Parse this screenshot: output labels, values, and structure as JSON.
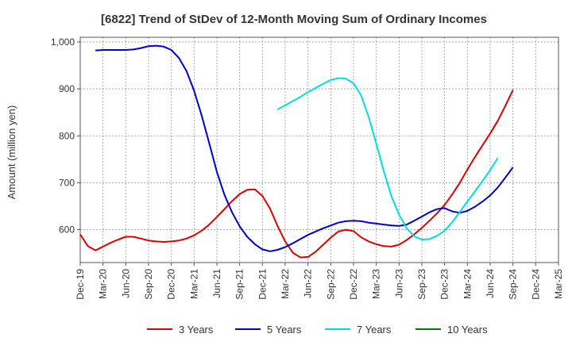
{
  "chart_data": {
    "type": "line",
    "title": "[6822]  Trend of StDev of 12-Month Moving Sum of Ordinary Incomes",
    "xlabel": "",
    "ylabel": "Amount (million yen)",
    "x_tick_labels": [
      "Dec-19",
      "Mar-20",
      "Jun-20",
      "Sep-20",
      "Dec-20",
      "Mar-21",
      "Jun-21",
      "Sep-21",
      "Dec-21",
      "Mar-22",
      "Jun-22",
      "Sep-22",
      "Dec-22",
      "Mar-23",
      "Jun-23",
      "Sep-23",
      "Dec-23",
      "Mar-24",
      "Jun-24",
      "Sep-24",
      "Dec-24",
      "Mar-25"
    ],
    "y_ticks": [
      600,
      700,
      800,
      900,
      1000
    ],
    "y_tick_labels": [
      "600",
      "700",
      "800",
      "900",
      "1,000"
    ],
    "ylim": [
      530,
      1010
    ],
    "grid": true,
    "legend_position": "bottom",
    "series": [
      {
        "name": "3 Years",
        "color": "#dd0000",
        "start_index": 0,
        "values": [
          590,
          565,
          556,
          564,
          572,
          579,
          585,
          585,
          581,
          577,
          575,
          574,
          575,
          577,
          581,
          588,
          598,
          611,
          627,
          644,
          661,
          676,
          685,
          686,
          672,
          645,
          608,
          575,
          551,
          541,
          542,
          553,
          568,
          583,
          596,
          600,
          597,
          584,
          575,
          569,
          565,
          564,
          568,
          578,
          590,
          604,
          619,
          635,
          653,
          675,
          700,
          728,
          755,
          780,
          805,
          832,
          864,
          898
        ]
      },
      {
        "name": "5 Years",
        "color": "#0000cc",
        "start_index": 2,
        "values": [
          982,
          983,
          983,
          983,
          983,
          984,
          987,
          991,
          992,
          990,
          983,
          966,
          938,
          896,
          843,
          784,
          723,
          674,
          637,
          607,
          585,
          569,
          558,
          554,
          557,
          563,
          571,
          580,
          589,
          596,
          603,
          609,
          615,
          618,
          619,
          618,
          615,
          613,
          611,
          609,
          608,
          611,
          619,
          628,
          637,
          644,
          646,
          639,
          636,
          640,
          649,
          660,
          673,
          690,
          711,
          733
        ]
      },
      {
        "name": "7 Years",
        "color": "#00dddd",
        "start_index": 26,
        "values": [
          856,
          865,
          874,
          883,
          893,
          902,
          911,
          919,
          923,
          922,
          912,
          886,
          840,
          783,
          724,
          671,
          632,
          603,
          586,
          579,
          580,
          587,
          598,
          616,
          638,
          660,
          682,
          704,
          727,
          753
        ]
      },
      {
        "name": "10 Years",
        "color": "#007700",
        "start_index": 0,
        "values": []
      }
    ]
  }
}
